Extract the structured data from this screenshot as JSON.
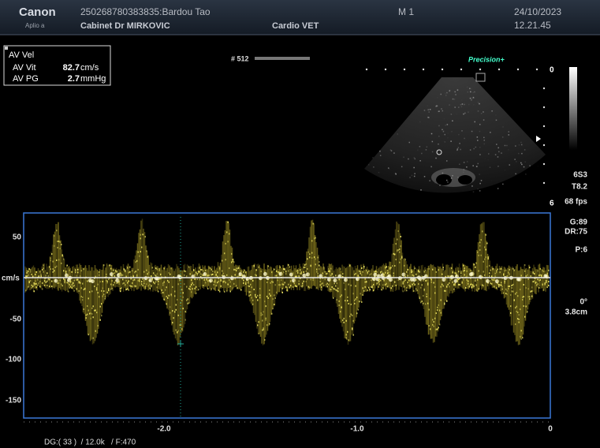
{
  "header": {
    "brand": "Canon",
    "model": "Aplio a",
    "patient": "250268780383835:Bardou Tao",
    "clinic": "Cabinet Dr MIRKOVIC",
    "preset": "Cardio VET",
    "mode": "M 1",
    "date": "24/10/2023",
    "time": "12.21.45"
  },
  "measurements": {
    "title": "AV Vel",
    "rows": [
      {
        "label": "AV Vit",
        "value": "82.7",
        "unit": "cm/s"
      },
      {
        "label": "AV PG",
        "value": "2.7",
        "unit": "mmHg"
      }
    ]
  },
  "image": {
    "frame": "# 512",
    "logo": "Precision+",
    "depth_top": "0",
    "depth_bottom": "6"
  },
  "right_panel": {
    "probe": "6S3",
    "freq": "T8.2",
    "fps": "68 fps",
    "gain": "G:89",
    "dr": "DR:75",
    "power": "P:6",
    "angle": "0°",
    "gate": "3.8cm"
  },
  "doppler": {
    "y_labels": [
      "50",
      "cm/s",
      "-50",
      "-100",
      "-150"
    ],
    "x_labels": [
      "-2.0",
      "-1.0",
      "0"
    ],
    "footer": "DG:( 33 )  / 12.0k   / F:470"
  }
}
